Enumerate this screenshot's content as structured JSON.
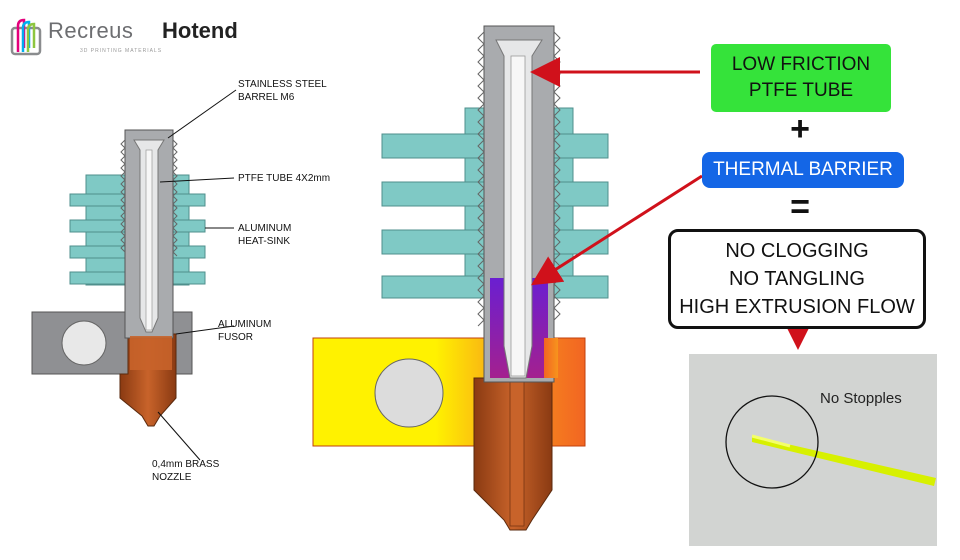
{
  "logo": {
    "brand": "Recreus",
    "tagline": "3D PRINTING MATERIALS",
    "product": "Hotend"
  },
  "labels": {
    "barrel": "STAINLESS STEEL\nBARREL M6",
    "ptfe": "PTFE TUBE 4X2mm",
    "heatsink": "ALUMINUM\nHEAT-SINK",
    "fusor": "ALUMINUM\nFUSOR",
    "nozzle": "0,4mm BRASS\nNOZZLE"
  },
  "callouts": {
    "friction": "LOW FRICTION\nPTFE TUBE",
    "plus": "+",
    "thermal": "THERMAL BARRIER",
    "equals": "=",
    "result": "NO CLOGGING\nNO TANGLING\nHIGH EXTRUSION FLOW"
  },
  "photo": {
    "label": "No Stopples"
  },
  "colors": {
    "heatsink": "#7fc9c5",
    "steel": "#a9abae",
    "ptfe": "#e6e7e8",
    "brass": "#b5561f",
    "fusor": "#8f9093",
    "hot_yellow": "#fff200",
    "hot_orange": "#f7941d",
    "barrier": "#7b2fbe",
    "arrow": "#d0111b",
    "green": "#35e33a",
    "blue": "#1466e6",
    "filament": "#d7f000"
  },
  "icons": [
    "recreus-logo-icon",
    "red-arrow-icon"
  ]
}
